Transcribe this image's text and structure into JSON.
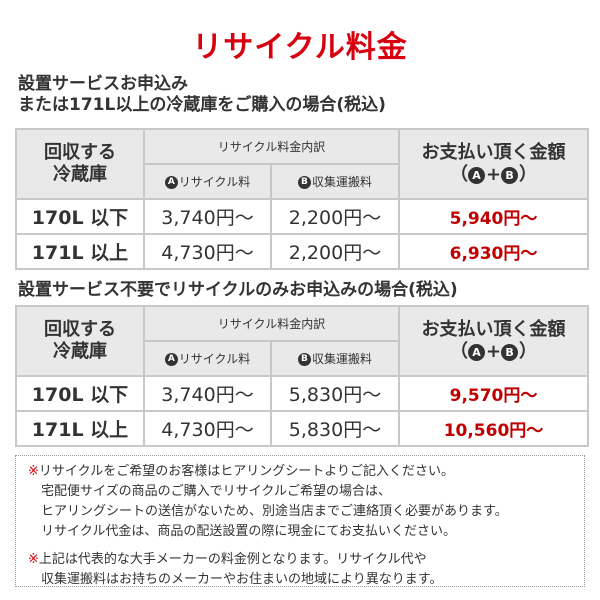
{
  "title": "リサイクル料金",
  "colors": {
    "title": "#d7000f",
    "total": "#c00000",
    "header_bg": "#e9e9e9"
  },
  "section1": {
    "heading_line1": "設置サービスお申込み",
    "heading_line2": "または171L以上の冷蔵庫をご購入の場合(税込)",
    "table": {
      "col1_header_line1": "回収する",
      "col1_header_line2": "冷蔵庫",
      "breakdown_header": "リサイクル料金内訳",
      "sub_a_badge": "A",
      "sub_a_label": "リサイクル料",
      "sub_b_badge": "B",
      "sub_b_label": "収集運搬料",
      "total_header_line1": "お支払い頂く金額",
      "total_header_open": "（",
      "total_header_a": "A",
      "total_header_plus": "+",
      "total_header_b": "B",
      "total_header_close": "）",
      "rows": [
        {
          "label": "170L 以下",
          "recycle": "3,740円〜",
          "transport": "2,200円〜",
          "total": "5,940円〜"
        },
        {
          "label": "171L 以上",
          "recycle": "4,730円〜",
          "transport": "2,200円〜",
          "total": "6,930円〜"
        }
      ]
    }
  },
  "section2": {
    "heading": "設置サービス不要でリサイクルのみお申込みの場合(税込)",
    "table": {
      "col1_header_line1": "回収する",
      "col1_header_line2": "冷蔵庫",
      "breakdown_header": "リサイクル料金内訳",
      "sub_a_badge": "A",
      "sub_a_label": "リサイクル料",
      "sub_b_badge": "B",
      "sub_b_label": "収集運搬料",
      "total_header_line1": "お支払い頂く金額",
      "total_header_open": "（",
      "total_header_a": "A",
      "total_header_plus": "+",
      "total_header_b": "B",
      "total_header_close": "）",
      "rows": [
        {
          "label": "170L 以下",
          "recycle": "3,740円〜",
          "transport": "5,830円〜",
          "total": "9,570円〜"
        },
        {
          "label": "171L 以上",
          "recycle": "4,730円〜",
          "transport": "5,830円〜",
          "total": "10,560円〜"
        }
      ]
    }
  },
  "notes": {
    "mark": "※",
    "note1": [
      "リサイクルをご希望のお客様はヒアリングシートよりご記入ください。",
      "宅配便サイズの商品のご購入でリサイクルご希望の場合は、",
      "ヒアリングシートの送信がないため、別途当店までご連絡頂く必要があります。",
      "リサイクル代金は、商品の配送設置の際に現金にてお支払いください。"
    ],
    "note2": [
      "上記は代表的な大手メーカーの料金例となります。リサイクル代や",
      "収集運搬料はお持ちのメーカーやお住まいの地域により異なります。"
    ]
  }
}
